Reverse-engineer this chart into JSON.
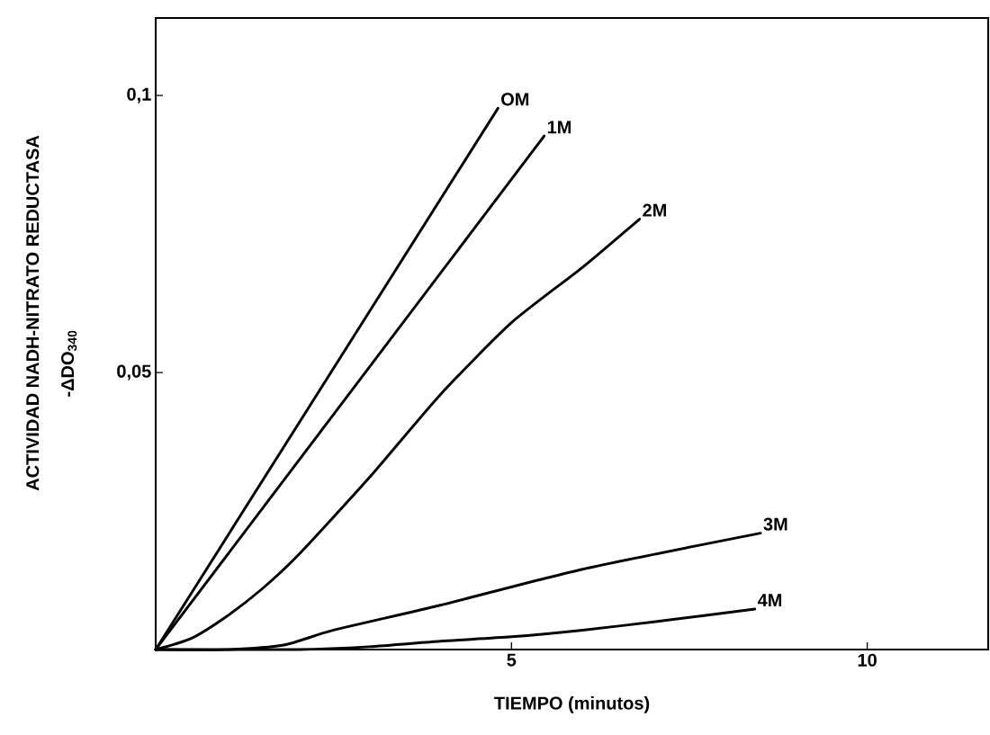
{
  "chart_data": {
    "type": "line",
    "xlabel": "TIEMPO (minutos)",
    "ylabel": "ACTIVIDAD    NADH-NITRATO REDUCTASA",
    "annotations": [
      "-ΔDO$_{340}$"
    ],
    "xlim": [
      0,
      11.7
    ],
    "ylim": [
      0,
      0.114
    ],
    "xticks": [
      5,
      10
    ],
    "yticks": [
      {
        "value": 0.05,
        "label": "0,05"
      },
      {
        "value": 0.1,
        "label": "0,1"
      }
    ],
    "grid": false,
    "legend": false,
    "marker": "none",
    "line_style": "solid",
    "series": [
      {
        "name": "OM",
        "color": "#000000",
        "x": [
          0,
          4.81
        ],
        "values": [
          0,
          0.0977
        ]
      },
      {
        "name": "1M",
        "color": "#000000",
        "x": [
          0,
          5.46
        ],
        "values": [
          0,
          0.0927
        ]
      },
      {
        "name": "2M",
        "color": "#000000",
        "x": [
          0,
          0.5,
          1,
          1.5,
          2,
          3,
          4,
          5,
          6,
          6.8
        ],
        "values": [
          0,
          0.002,
          0.006,
          0.011,
          0.017,
          0.031,
          0.046,
          0.059,
          0.069,
          0.0777
        ]
      },
      {
        "name": "3M",
        "color": "#000000",
        "x": [
          0,
          1,
          1.8,
          2.5,
          4,
          6,
          8.5
        ],
        "values": [
          0,
          0,
          0.0008,
          0.0035,
          0.008,
          0.0145,
          0.021
        ]
      },
      {
        "name": "4M",
        "color": "#000000",
        "x": [
          0,
          2,
          3,
          4,
          5,
          6,
          7,
          8.42
        ],
        "values": [
          0,
          0,
          0.0005,
          0.0015,
          0.0023,
          0.0035,
          0.005,
          0.0073
        ]
      }
    ]
  }
}
